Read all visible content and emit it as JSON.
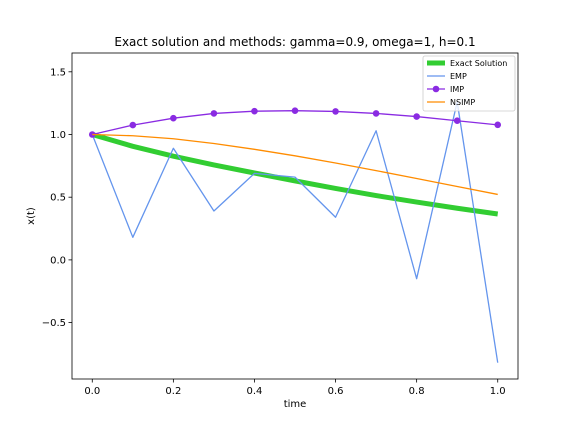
{
  "chart_data": {
    "type": "line",
    "title": "Exact solution and methods: gamma=0.9, omega=1, h=0.1",
    "xlabel": "time",
    "ylabel": "x(t)",
    "xlim": [
      -0.05,
      1.05
    ],
    "ylim": [
      -0.95,
      1.65
    ],
    "xticks": [
      0.0,
      0.2,
      0.4,
      0.6,
      0.8,
      1.0
    ],
    "xtick_labels": [
      "0.0",
      "0.2",
      "0.4",
      "0.6",
      "0.8",
      "1.0"
    ],
    "yticks": [
      -0.5,
      0.0,
      0.5,
      1.0,
      1.5
    ],
    "ytick_labels": [
      "−0.5",
      "0.0",
      "0.5",
      "1.0",
      "1.5"
    ],
    "legend_position": "top-right",
    "grid": false,
    "series": [
      {
        "name": "Exact Solution",
        "color": "#32cd32",
        "marker": "none",
        "x": [
          0.0,
          0.1,
          0.2,
          0.3,
          0.4,
          0.5,
          0.6,
          0.7,
          0.8,
          0.9,
          1.0
        ],
        "y": [
          1.0,
          0.906,
          0.827,
          0.757,
          0.693,
          0.63,
          0.57,
          0.513,
          0.461,
          0.412,
          0.366
        ]
      },
      {
        "name": "EMP",
        "color": "#6495ed",
        "marker": "none",
        "x": [
          0.0,
          0.1,
          0.2,
          0.3,
          0.4,
          0.5,
          0.6,
          0.7,
          0.8,
          0.9,
          1.0
        ],
        "y": [
          1.0,
          0.18,
          0.89,
          0.39,
          0.69,
          0.66,
          0.34,
          1.03,
          -0.15,
          1.26,
          -0.82
        ]
      },
      {
        "name": "IMP",
        "color": "#8a2be2",
        "marker": "circle",
        "x": [
          0.0,
          0.1,
          0.2,
          0.3,
          0.4,
          0.5,
          0.6,
          0.7,
          0.8,
          0.9,
          1.0
        ],
        "y": [
          1.0,
          1.075,
          1.13,
          1.168,
          1.186,
          1.19,
          1.184,
          1.168,
          1.143,
          1.11,
          1.077
        ]
      },
      {
        "name": "NSIMP",
        "color": "#ff8c00",
        "marker": "none",
        "x": [
          0.0,
          0.1,
          0.2,
          0.3,
          0.4,
          0.5,
          0.6,
          0.7,
          0.8,
          0.9,
          1.0
        ],
        "y": [
          1.0,
          0.99,
          0.966,
          0.928,
          0.882,
          0.83,
          0.773,
          0.712,
          0.649,
          0.585,
          0.522
        ]
      }
    ]
  }
}
